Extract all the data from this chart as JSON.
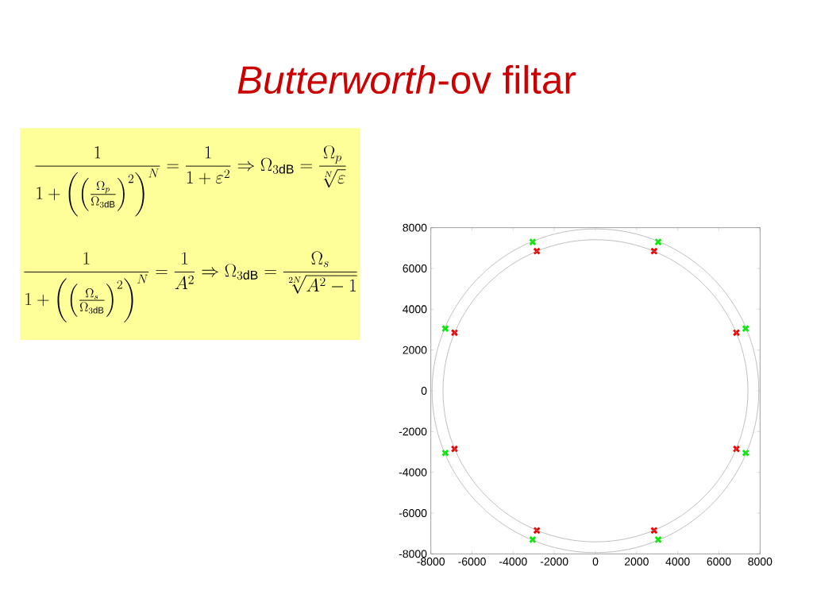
{
  "chart_data": {
    "type": "scatter",
    "title": "*Butterworth*-ov filtar",
    "annotations": [
      "\\frac{1}{1+\\left(\\left(\\frac{\\Omega_p}{\\Omega_{3\\mathrm{dB}}}\\right)^2\\right)^N}=\\frac{1}{1+\\varepsilon^2}\\Rightarrow\\Omega_{3\\mathrm{dB}}=\\frac{\\Omega_p}{\\sqrt[N]{\\varepsilon}}",
      "\\frac{1}{1+\\left(\\left(\\frac{\\Omega_s}{\\Omega_{3\\mathrm{dB}}}\\right)^2\\right)^N}=\\frac{1}{A^2}\\Rightarrow\\Omega_{3\\mathrm{dB}}=\\frac{\\Omega_s}{\\sqrt[2N]{A^2-1}}"
    ],
    "xlim": [
      -8000,
      8000
    ],
    "ylim": [
      -8000,
      8000
    ],
    "xticks": [
      -8000,
      -6000,
      -4000,
      -2000,
      0,
      2000,
      4000,
      6000,
      8000
    ],
    "yticks": [
      -8000,
      -6000,
      -4000,
      -2000,
      0,
      2000,
      4000,
      6000,
      8000
    ],
    "series": [
      {
        "color": "#00ee00",
        "marker": "cross",
        "x": [
          3050,
          -3050,
          -7300,
          -7300,
          -3050,
          3050,
          7300,
          7300
        ],
        "values": [
          7300,
          7300,
          3050,
          -3050,
          -7300,
          -7300,
          -3050,
          3050
        ]
      },
      {
        "color": "#ee0000",
        "marker": "cross",
        "x": [
          2850,
          -2850,
          -6850,
          -6850,
          -2850,
          2850,
          6850,
          6850
        ],
        "values": [
          6850,
          6850,
          2850,
          -2850,
          -6850,
          -6850,
          -2850,
          2850
        ]
      }
    ]
  }
}
